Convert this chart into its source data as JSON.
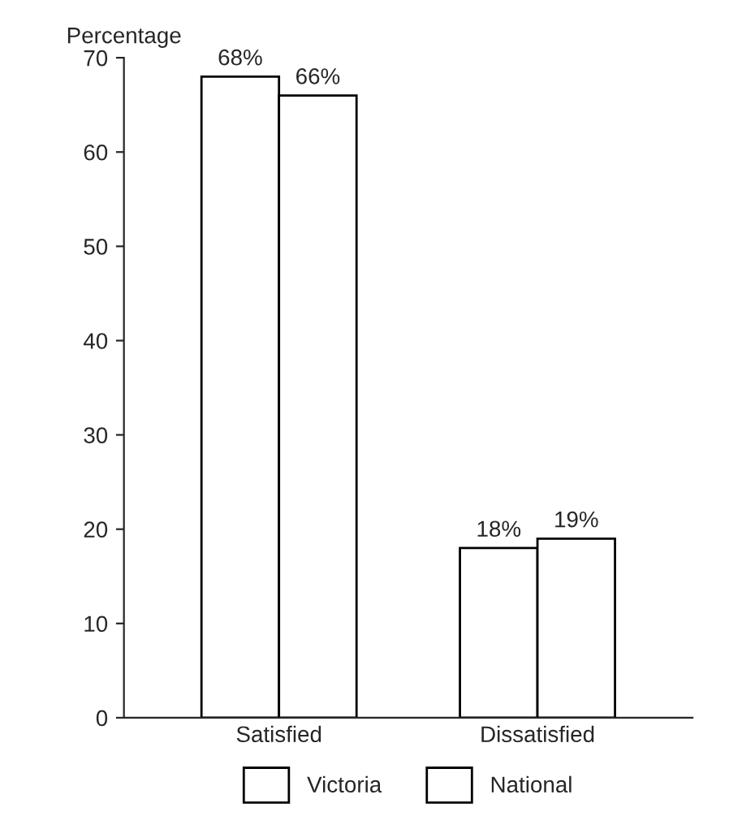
{
  "chart_data": {
    "type": "bar",
    "ylabel": "Percentage",
    "categories": [
      "Satisfied",
      "Dissatisfied"
    ],
    "series": [
      {
        "name": "Victoria",
        "color": "#ffffff",
        "values": [
          68,
          18
        ],
        "value_labels": [
          "68%",
          "18%"
        ]
      },
      {
        "name": "National",
        "color": "#ffffff",
        "values": [
          66,
          19
        ],
        "value_labels": [
          "66%",
          "19%"
        ]
      }
    ],
    "ylim": [
      0,
      70
    ],
    "yticks": [
      0,
      10,
      20,
      30,
      40,
      50,
      60,
      70
    ],
    "grid": false,
    "legend": "bottom"
  }
}
